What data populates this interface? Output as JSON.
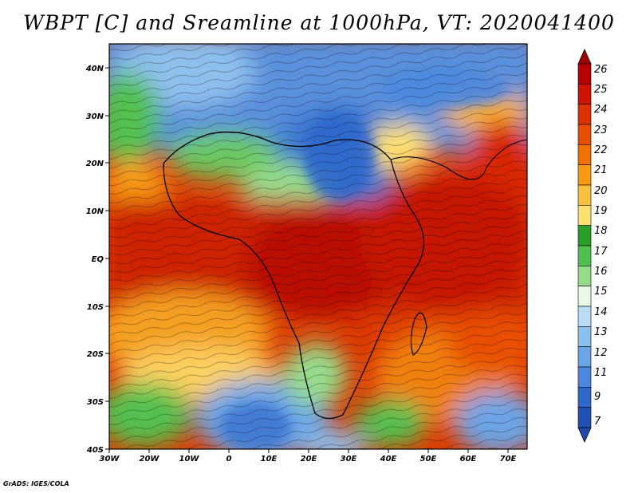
{
  "title": "WBPT [C] and Sreamline at 1000hPa, VT: 2020041400",
  "credit": "GrADS: IGES/COLA",
  "lat_labels": [
    "40N",
    "30N",
    "20N",
    "10N",
    "EQ",
    "10S",
    "20S",
    "30S",
    "40S"
  ],
  "lon_labels": [
    "30W",
    "20W",
    "10W",
    "0",
    "10E",
    "20E",
    "30E",
    "40E",
    "50E",
    "60E",
    "70E"
  ],
  "colorbar": {
    "labels": [
      "26",
      "25",
      "24",
      "23",
      "22",
      "21",
      "20",
      "19",
      "18",
      "17",
      "16",
      "15",
      "14",
      "13",
      "12",
      "11",
      "9",
      "7"
    ],
    "colors": [
      "#b40000",
      "#cc1400",
      "#dc3200",
      "#e84e00",
      "#f07000",
      "#f89a14",
      "#fcc040",
      "#fde070",
      "#2aa028",
      "#52c050",
      "#96dc8c",
      "#e6fae6",
      "#bcdcf4",
      "#8ec0ee",
      "#6ca4e6",
      "#4c88de",
      "#3068cc",
      "#2050b4"
    ]
  },
  "chart_data": {
    "type": "heatmap",
    "title": "WBPT [C] and Sreamline at 1000hPa, VT: 2020041400",
    "variable": "WBPT [C]",
    "level": "1000hPa",
    "valid_time": "2020041400",
    "lon_range": [
      -30,
      75
    ],
    "lat_range": [
      -40,
      45
    ],
    "legend_placement": "right",
    "scale_ticks": [
      "7",
      "9",
      "11",
      "12",
      "13",
      "14",
      "15",
      "16",
      "17",
      "18",
      "19",
      "20",
      "21",
      "22",
      "23",
      "24",
      "25",
      "26"
    ]
  }
}
